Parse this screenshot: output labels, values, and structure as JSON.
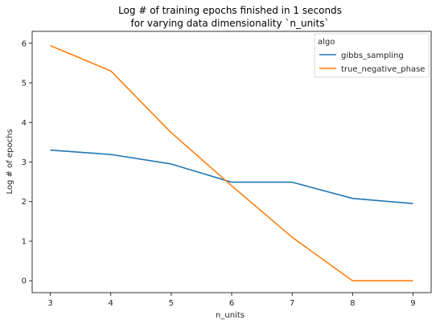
{
  "chart_data": {
    "type": "line",
    "title_lines": [
      "Log # of training epochs finished in 1 seconds",
      "for varying data dimensionality `n_units`"
    ],
    "xlabel": "n_units",
    "ylabel": "Log # of epochs",
    "x": [
      3,
      4,
      5,
      6,
      7,
      8,
      9
    ],
    "xlim": [
      2.7,
      9.3
    ],
    "ylim": [
      -0.3,
      6.3
    ],
    "xticks": [
      3,
      4,
      5,
      6,
      7,
      8,
      9
    ],
    "yticks": [
      0,
      1,
      2,
      3,
      4,
      5,
      6
    ],
    "grid": false,
    "legend": {
      "title": "algo",
      "placement": "top-right"
    },
    "series": [
      {
        "name": "gibbs_sampling",
        "color": "#1f77b4",
        "values": [
          3.3,
          3.19,
          2.95,
          2.49,
          2.49,
          2.08,
          1.95
        ]
      },
      {
        "name": "true_negative_phase",
        "color": "#ff7f0e",
        "values": [
          5.94,
          5.3,
          3.74,
          2.4,
          1.1,
          0.0,
          0.0
        ]
      }
    ]
  }
}
